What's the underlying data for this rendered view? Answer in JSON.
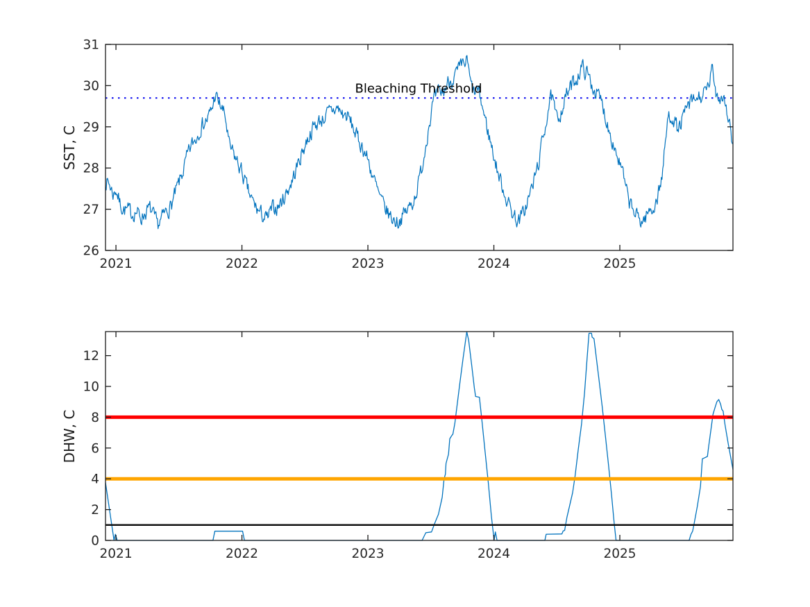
{
  "figure": {
    "background": "#ffffff",
    "axis_color": "#1a1a1a",
    "tick_label_color": "#252525",
    "series_color": "#0072BD"
  },
  "chart_data": [
    {
      "type": "line",
      "ylabel": "SST, C",
      "xlabel": "",
      "xlim": [
        2020.917,
        2025.898
      ],
      "ylim": [
        26,
        31
      ],
      "xticks": [
        2021,
        2022,
        2023,
        2024,
        2025
      ],
      "xtick_labels": [
        "2021",
        "2022",
        "2023",
        "2024",
        "2025"
      ],
      "yticks": [
        26,
        27,
        28,
        29,
        30,
        31
      ],
      "ytick_labels": [
        "26",
        "27",
        "28",
        "29",
        "30",
        "31"
      ],
      "grid": false,
      "annotation": {
        "text": "Bleaching Threshold",
        "x": 2023.42,
        "y": 29.95
      },
      "threshold": {
        "label": "Bleaching Threshold",
        "value": 29.7,
        "style": "dotted",
        "color": "#0000EE",
        "width": 2
      },
      "noise": {
        "amplitude": 0.17,
        "persistence": 0.45,
        "seed": 7
      },
      "series": [
        {
          "name": "SST",
          "color": "#0072BD",
          "width": 1.2,
          "anchors": [
            [
              2020.92,
              27.7
            ],
            [
              2020.95,
              27.6
            ],
            [
              2020.98,
              27.35
            ],
            [
              2021.0,
              27.5
            ],
            [
              2021.03,
              27.15
            ],
            [
              2021.06,
              27.0
            ],
            [
              2021.1,
              26.95
            ],
            [
              2021.13,
              26.9
            ],
            [
              2021.16,
              26.95
            ],
            [
              2021.2,
              26.8
            ],
            [
              2021.24,
              26.95
            ],
            [
              2021.27,
              27.0
            ],
            [
              2021.3,
              26.8
            ],
            [
              2021.33,
              26.6
            ],
            [
              2021.36,
              26.75
            ],
            [
              2021.4,
              26.95
            ],
            [
              2021.44,
              27.1
            ],
            [
              2021.48,
              27.45
            ],
            [
              2021.52,
              27.8
            ],
            [
              2021.56,
              28.2
            ],
            [
              2021.6,
              28.55
            ],
            [
              2021.64,
              28.75
            ],
            [
              2021.67,
              29.0
            ],
            [
              2021.7,
              29.1
            ],
            [
              2021.73,
              29.2
            ],
            [
              2021.76,
              29.4
            ],
            [
              2021.79,
              29.8
            ],
            [
              2021.81,
              29.6
            ],
            [
              2021.84,
              29.45
            ],
            [
              2021.87,
              29.2
            ],
            [
              2021.9,
              28.5
            ],
            [
              2021.93,
              28.35
            ],
            [
              2021.97,
              28.1
            ],
            [
              2022.0,
              27.9
            ],
            [
              2022.04,
              27.5
            ],
            [
              2022.08,
              27.2
            ],
            [
              2022.12,
              27.0
            ],
            [
              2022.16,
              26.85
            ],
            [
              2022.2,
              26.75
            ],
            [
              2022.24,
              27.0
            ],
            [
              2022.28,
              27.05
            ],
            [
              2022.32,
              27.2
            ],
            [
              2022.36,
              27.45
            ],
            [
              2022.4,
              27.7
            ],
            [
              2022.44,
              28.05
            ],
            [
              2022.48,
              28.4
            ],
            [
              2022.52,
              28.7
            ],
            [
              2022.56,
              28.95
            ],
            [
              2022.6,
              29.1
            ],
            [
              2022.64,
              29.2
            ],
            [
              2022.68,
              29.3
            ],
            [
              2022.72,
              29.4
            ],
            [
              2022.76,
              29.45
            ],
            [
              2022.8,
              29.3
            ],
            [
              2022.84,
              29.25
            ],
            [
              2022.88,
              29.0
            ],
            [
              2022.92,
              28.7
            ],
            [
              2022.96,
              28.5
            ],
            [
              2023.0,
              28.2
            ],
            [
              2023.04,
              27.8
            ],
            [
              2023.08,
              27.4
            ],
            [
              2023.12,
              27.1
            ],
            [
              2023.16,
              26.9
            ],
            [
              2023.2,
              26.75
            ],
            [
              2023.24,
              26.7
            ],
            [
              2023.28,
              26.85
            ],
            [
              2023.32,
              27.0
            ],
            [
              2023.36,
              27.2
            ],
            [
              2023.4,
              27.6
            ],
            [
              2023.44,
              28.2
            ],
            [
              2023.48,
              29.0
            ],
            [
              2023.52,
              29.6
            ],
            [
              2023.56,
              29.8
            ],
            [
              2023.6,
              29.85
            ],
            [
              2023.64,
              30.1
            ],
            [
              2023.68,
              30.2
            ],
            [
              2023.72,
              30.35
            ],
            [
              2023.76,
              30.5
            ],
            [
              2023.79,
              30.6
            ],
            [
              2023.81,
              30.1
            ],
            [
              2023.84,
              29.8
            ],
            [
              2023.87,
              29.9
            ],
            [
              2023.9,
              29.6
            ],
            [
              2023.93,
              29.2
            ],
            [
              2023.96,
              28.8
            ],
            [
              2024.0,
              28.3
            ],
            [
              2024.04,
              27.8
            ],
            [
              2024.08,
              27.45
            ],
            [
              2024.12,
              27.1
            ],
            [
              2024.16,
              26.85
            ],
            [
              2024.2,
              26.7
            ],
            [
              2024.24,
              26.95
            ],
            [
              2024.28,
              27.3
            ],
            [
              2024.32,
              27.7
            ],
            [
              2024.36,
              28.2
            ],
            [
              2024.4,
              28.9
            ],
            [
              2024.44,
              29.6
            ],
            [
              2024.46,
              29.7
            ],
            [
              2024.5,
              29.15
            ],
            [
              2024.54,
              29.45
            ],
            [
              2024.58,
              29.8
            ],
            [
              2024.62,
              30.0
            ],
            [
              2024.66,
              30.2
            ],
            [
              2024.7,
              30.45
            ],
            [
              2024.74,
              30.3
            ],
            [
              2024.78,
              30.0
            ],
            [
              2024.82,
              29.8
            ],
            [
              2024.86,
              29.55
            ],
            [
              2024.9,
              29.1
            ],
            [
              2024.94,
              28.7
            ],
            [
              2024.98,
              28.3
            ],
            [
              2025.02,
              27.9
            ],
            [
              2025.06,
              27.3
            ],
            [
              2025.1,
              27.0
            ],
            [
              2025.14,
              26.8
            ],
            [
              2025.18,
              26.7
            ],
            [
              2025.22,
              26.9
            ],
            [
              2025.26,
              27.0
            ],
            [
              2025.3,
              27.3
            ],
            [
              2025.34,
              27.9
            ],
            [
              2025.38,
              29.2
            ],
            [
              2025.42,
              29.3
            ],
            [
              2025.46,
              28.9
            ],
            [
              2025.5,
              29.2
            ],
            [
              2025.54,
              29.5
            ],
            [
              2025.58,
              29.6
            ],
            [
              2025.62,
              29.7
            ],
            [
              2025.66,
              29.75
            ],
            [
              2025.7,
              29.9
            ],
            [
              2025.73,
              30.4
            ],
            [
              2025.76,
              29.9
            ],
            [
              2025.79,
              29.7
            ],
            [
              2025.82,
              29.8
            ],
            [
              2025.85,
              29.4
            ],
            [
              2025.88,
              28.9
            ],
            [
              2025.898,
              28.5
            ]
          ]
        }
      ]
    },
    {
      "type": "line",
      "ylabel": "DHW, C",
      "xlabel": "",
      "xlim": [
        2020.917,
        2025.898
      ],
      "ylim": [
        0,
        13.56
      ],
      "xticks": [
        2021,
        2022,
        2023,
        2024,
        2025
      ],
      "xtick_labels": [
        "2021",
        "2022",
        "2023",
        "2024",
        "2025"
      ],
      "yticks": [
        0,
        2,
        4,
        6,
        8,
        10,
        12
      ],
      "ytick_labels": [
        "0",
        "2",
        "4",
        "6",
        "8",
        "10",
        "12"
      ],
      "grid": false,
      "hlines": [
        {
          "y": 1,
          "color": "#111111",
          "width": 2.5
        },
        {
          "y": 4,
          "color": "#FFA500",
          "width": 5
        },
        {
          "y": 8,
          "color": "#FF0000",
          "width": 5
        }
      ],
      "series": [
        {
          "name": "DHW",
          "color": "#0072BD",
          "width": 1.3,
          "anchors": [
            [
              2020.917,
              3.75
            ],
            [
              2020.985,
              0
            ],
            [
              2020.995,
              0.4
            ],
            [
              2021.01,
              0
            ],
            [
              2021.77,
              0
            ],
            [
              2021.785,
              0.6
            ],
            [
              2022.005,
              0.6
            ],
            [
              2022.02,
              0
            ],
            [
              2023.43,
              0
            ],
            [
              2023.46,
              0.5
            ],
            [
              2023.505,
              0.55
            ],
            [
              2023.53,
              1.1
            ],
            [
              2023.56,
              1.7
            ],
            [
              2023.59,
              2.8
            ],
            [
              2023.605,
              4.0
            ],
            [
              2023.615,
              4.3
            ],
            [
              2023.62,
              5.0
            ],
            [
              2023.64,
              5.6
            ],
            [
              2023.65,
              6.6
            ],
            [
              2023.665,
              6.8
            ],
            [
              2023.675,
              6.9
            ],
            [
              2023.69,
              7.6
            ],
            [
              2023.71,
              8.9
            ],
            [
              2023.73,
              10.2
            ],
            [
              2023.755,
              11.8
            ],
            [
              2023.785,
              13.55
            ],
            [
              2023.8,
              13.0
            ],
            [
              2023.825,
              11.3
            ],
            [
              2023.845,
              9.9
            ],
            [
              2023.855,
              9.35
            ],
            [
              2023.885,
              9.3
            ],
            [
              2023.905,
              7.8
            ],
            [
              2023.93,
              5.8
            ],
            [
              2023.955,
              3.8
            ],
            [
              2023.98,
              1.6
            ],
            [
              2024.002,
              0
            ],
            [
              2024.012,
              0.55
            ],
            [
              2024.025,
              0
            ],
            [
              2024.405,
              0
            ],
            [
              2024.415,
              0.4
            ],
            [
              2024.54,
              0.42
            ],
            [
              2024.55,
              0.62
            ],
            [
              2024.562,
              0.65
            ],
            [
              2024.58,
              1.5
            ],
            [
              2024.6,
              2.2
            ],
            [
              2024.625,
              3.1
            ],
            [
              2024.645,
              4.2
            ],
            [
              2024.67,
              5.9
            ],
            [
              2024.695,
              7.5
            ],
            [
              2024.72,
              9.6
            ],
            [
              2024.74,
              11.8
            ],
            [
              2024.755,
              13.45
            ],
            [
              2024.775,
              13.45
            ],
            [
              2024.78,
              13.2
            ],
            [
              2024.795,
              13.1
            ],
            [
              2024.81,
              12.1
            ],
            [
              2024.835,
              10.4
            ],
            [
              2024.86,
              8.7
            ],
            [
              2024.885,
              6.8
            ],
            [
              2024.91,
              4.9
            ],
            [
              2024.935,
              2.9
            ],
            [
              2024.955,
              1.1
            ],
            [
              2024.97,
              0
            ],
            [
              2025.55,
              0
            ],
            [
              2025.565,
              0.4
            ],
            [
              2025.578,
              0.6
            ],
            [
              2025.59,
              1.1
            ],
            [
              2025.615,
              2.2
            ],
            [
              2025.64,
              3.5
            ],
            [
              2025.655,
              5.3
            ],
            [
              2025.67,
              5.35
            ],
            [
              2025.695,
              5.45
            ],
            [
              2025.705,
              6.1
            ],
            [
              2025.725,
              7.3
            ],
            [
              2025.74,
              8.2
            ],
            [
              2025.755,
              8.6
            ],
            [
              2025.77,
              9.0
            ],
            [
              2025.785,
              9.15
            ],
            [
              2025.8,
              8.85
            ],
            [
              2025.81,
              8.5
            ],
            [
              2025.82,
              8.4
            ],
            [
              2025.835,
              7.5
            ],
            [
              2025.86,
              6.3
            ],
            [
              2025.885,
              5.2
            ],
            [
              2025.898,
              4.6
            ]
          ]
        }
      ]
    }
  ]
}
